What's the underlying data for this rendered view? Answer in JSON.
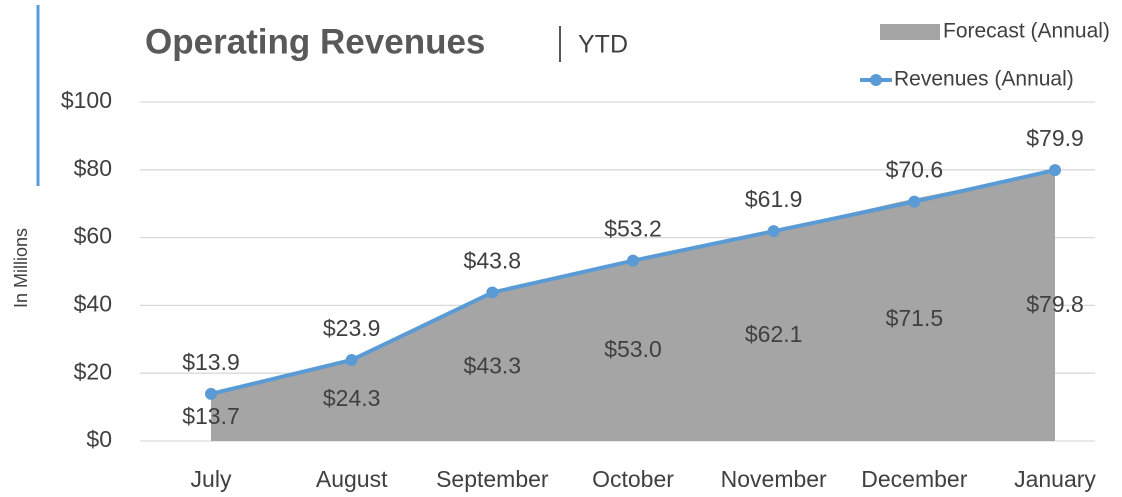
{
  "chart_data": {
    "type": "line",
    "title": "Operating Revenues",
    "subtitle": "YTD",
    "y_label": "In Millions",
    "categories": [
      "July",
      "August",
      "September",
      "October",
      "November",
      "December",
      "January"
    ],
    "series": [
      {
        "name": "Forecast (Annual)",
        "type": "area",
        "color": "#a5a5a5",
        "values": [
          13.7,
          24.3,
          43.3,
          53.0,
          62.1,
          71.5,
          79.8
        ],
        "value_labels": [
          "$13.7",
          "$24.3",
          "$43.3",
          "$53.0",
          "$62.1",
          "$71.5",
          "$79.8"
        ]
      },
      {
        "name": "Revenues (Annual)",
        "type": "line",
        "color": "#5b9bd5",
        "values": [
          13.9,
          23.9,
          43.8,
          53.2,
          61.9,
          70.6,
          79.9
        ],
        "value_labels": [
          "$13.9",
          "$23.9",
          "$43.8",
          "$53.2",
          "$61.9",
          "$70.6",
          "$79.9"
        ]
      }
    ],
    "ylim": [
      0,
      100
    ],
    "yticks": [
      {
        "value": 0,
        "label": "$0"
      },
      {
        "value": 20,
        "label": "$20"
      },
      {
        "value": 40,
        "label": "$40"
      },
      {
        "value": 60,
        "label": "$60"
      },
      {
        "value": 80,
        "label": "$80"
      },
      {
        "value": 100,
        "label": "$100"
      }
    ],
    "grid": true,
    "legend": "top-right"
  }
}
